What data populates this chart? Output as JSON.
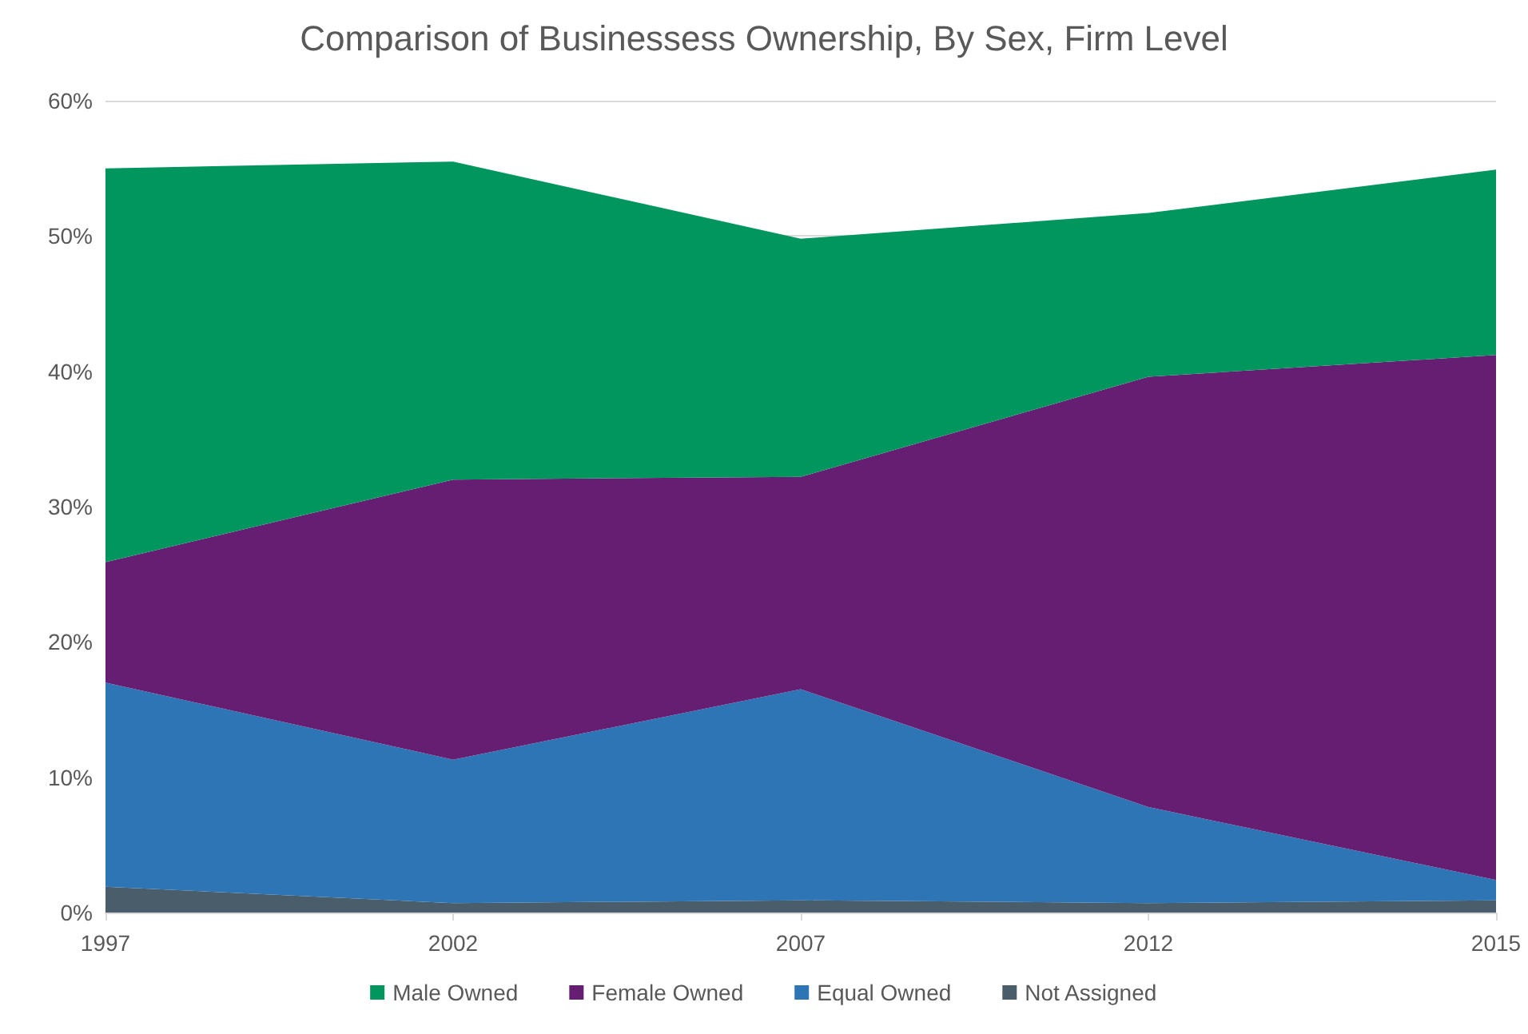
{
  "chart_data": {
    "type": "area",
    "title": "Comparison of Businessess Ownership, By Sex, Firm Level",
    "categories": [
      "1997",
      "2002",
      "2007",
      "2012",
      "2015"
    ],
    "stacked": true,
    "series": [
      {
        "name": "Not Assigned",
        "color": "#4a5d6b",
        "values": [
          1.9,
          0.7,
          0.9,
          0.7,
          0.9
        ]
      },
      {
        "name": "Equal Owned",
        "color": "#2e75b6",
        "values": [
          15.1,
          10.6,
          15.6,
          7.1,
          1.5
        ]
      },
      {
        "name": "Female Owned",
        "color": "#661e73",
        "values": [
          8.9,
          20.7,
          15.7,
          31.8,
          38.8
        ]
      },
      {
        "name": "Male Owned",
        "color": "#00965e",
        "values": [
          29.1,
          23.5,
          17.6,
          12.1,
          13.7
        ]
      }
    ],
    "ylim": [
      0,
      60
    ],
    "yticks": [
      {
        "value": 0,
        "label": "0%"
      },
      {
        "value": 10,
        "label": "10%"
      },
      {
        "value": 20,
        "label": "20%"
      },
      {
        "value": 30,
        "label": "30%"
      },
      {
        "value": 40,
        "label": "40%"
      },
      {
        "value": 50,
        "label": "50%"
      },
      {
        "value": 60,
        "label": "60%"
      }
    ],
    "grid": "y",
    "legend": "bottom"
  }
}
